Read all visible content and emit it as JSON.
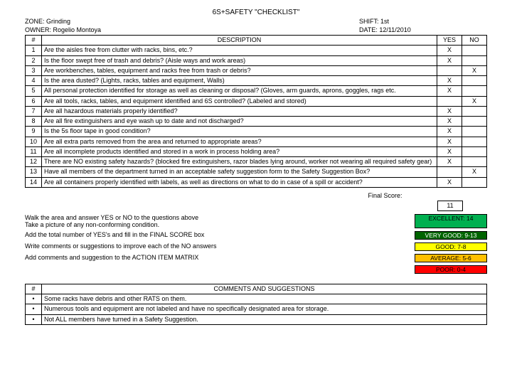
{
  "title": "6S+SAFETY \"CHECKLIST\"",
  "zone_label": "ZONE:",
  "zone_value": "Grinding",
  "shift_label": "SHIFT:",
  "shift_value": "1st",
  "owner_label": "OWNER:",
  "owner_value": "Rogelio Montoya",
  "date_label": "DATE:",
  "date_value": "12/11/2010",
  "col_num": "#",
  "col_desc": "DESCRIPTION",
  "col_yes": "YES",
  "col_no": "NO",
  "rows": [
    {
      "n": "1",
      "d": "Are the aisles free from clutter with racks, bins, etc.?",
      "y": "X",
      "no": ""
    },
    {
      "n": "2",
      "d": "Is the floor swept free of trash and debris? (Aisle ways and work areas)",
      "y": "X",
      "no": ""
    },
    {
      "n": "3",
      "d": "Are workbenches, tables, equipment and racks free from trash or debris?",
      "y": "",
      "no": "X"
    },
    {
      "n": "4",
      "d": "Is the area dusted? (Lights, racks, tables and equipment, Walls)",
      "y": "X",
      "no": ""
    },
    {
      "n": "5",
      "d": "All personal protection identified for storage as well as cleaning or disposal? (Gloves, arm guards, aprons, goggles, rags etc.",
      "y": "X",
      "no": ""
    },
    {
      "n": "6",
      "d": "Are all tools, racks, tables, and equipment identified and 6S controlled? (Labeled and stored)",
      "y": "",
      "no": "X"
    },
    {
      "n": "7",
      "d": "Are all hazardous materials properly identified?",
      "y": "X",
      "no": ""
    },
    {
      "n": "8",
      "d": "Are all fire extinguishers and eye wash up to date and not discharged?",
      "y": "X",
      "no": ""
    },
    {
      "n": "9",
      "d": "Is the 5s floor tape in good condition?",
      "y": "X",
      "no": ""
    },
    {
      "n": "10",
      "d": "Are all extra parts removed from the area and returned to appropriate areas?",
      "y": "X",
      "no": ""
    },
    {
      "n": "11",
      "d": "Are all incomplete products identified and stored in a work in process holding area?",
      "y": "X",
      "no": ""
    },
    {
      "n": "12",
      "d": "There are NO existing safety hazards? (blocked fire extinguishers, razor blades lying around, worker not wearing all required safety gear)",
      "y": "X",
      "no": ""
    },
    {
      "n": "13",
      "d": "Have all members of the department turned in an acceptable safety suggestion form to the Safety Suggestion Box?",
      "y": "",
      "no": "X"
    },
    {
      "n": "14",
      "d": "Are all containers properly identified with labels, as well as directions on what to do in case of a spill or accident?",
      "y": "X",
      "no": ""
    }
  ],
  "final_score_label": "Final Score:",
  "final_score": "11",
  "instructions": [
    "Walk the area and answer YES or NO to the questions above",
    "Take a picture of any non-conforming condition.",
    "Add the total number of YES's and fill in the FINAL SCORE box",
    "Write comments or suggestions to improve each of the NO answers",
    "Add comments and suggestion to the ACTION ITEM MATRIX"
  ],
  "scale": [
    {
      "label": "EXCELLENT: 14",
      "bg": "#00b050",
      "color": "#000"
    },
    {
      "label": "VERY GOOD: 9-13",
      "bg": "#006400",
      "color": "#fff"
    },
    {
      "label": "GOOD: 7-8",
      "bg": "#ffff00",
      "color": "#000"
    },
    {
      "label": "AVERAGE: 5-6",
      "bg": "#ffc000",
      "color": "#000"
    },
    {
      "label": "POOR: 0-4",
      "bg": "#ff0000",
      "color": "#000"
    }
  ],
  "comments_col_num": "#",
  "comments_head": "COMMENTS AND SUGGESTIONS",
  "comments": [
    "Some racks have debris and other RATS on them.",
    "Numerous tools and equipment are not labeled and have no specifically designated area for storage.",
    "Not ALL members have turned in a Safety Suggestion."
  ]
}
